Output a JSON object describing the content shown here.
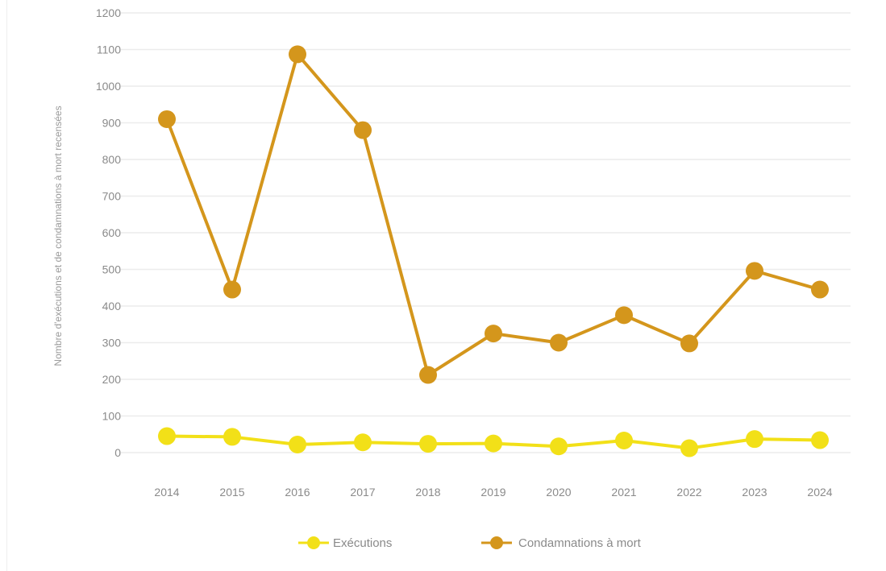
{
  "chart_data": {
    "type": "line",
    "categories": [
      "2014",
      "2015",
      "2016",
      "2017",
      "2018",
      "2019",
      "2020",
      "2021",
      "2022",
      "2023",
      "2024"
    ],
    "series": [
      {
        "name": "Exécutions",
        "color": "#f2e018",
        "values": [
          45,
          43,
          22,
          28,
          24,
          25,
          17,
          33,
          12,
          37,
          34
        ]
      },
      {
        "name": "Condamnations à mort",
        "color": "#d4961c",
        "values": [
          910,
          445,
          1087,
          880,
          212,
          325,
          300,
          375,
          298,
          496,
          445
        ]
      }
    ],
    "ylabel": "Nombre d'exécutions et de condamnations à mort recensées",
    "xlabel": "",
    "ylim": [
      0,
      1200
    ],
    "yticks": [
      0,
      100,
      200,
      300,
      400,
      500,
      600,
      700,
      800,
      900,
      1000,
      1100,
      1200
    ],
    "grid": true,
    "legend_position": "bottom"
  }
}
